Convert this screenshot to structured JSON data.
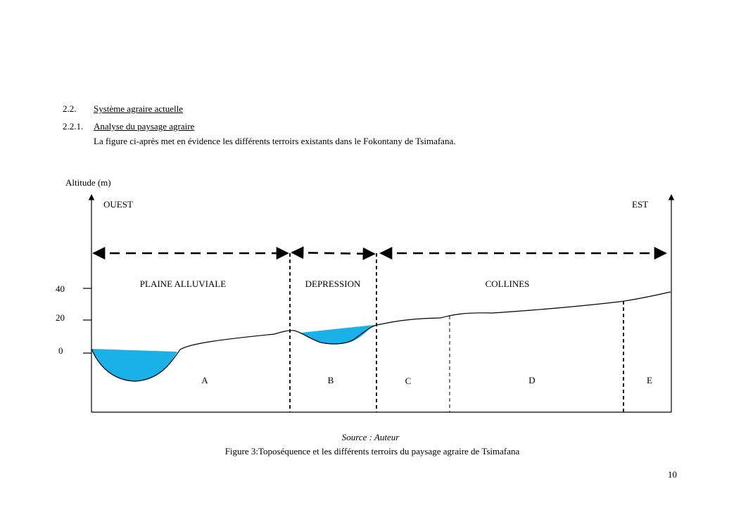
{
  "section": {
    "number": "2.2.",
    "title": "Système agraire actuelle"
  },
  "subsection": {
    "number": "2.2.1.",
    "title": "Analyse du paysage agraire"
  },
  "intro": "La figure ci-après met en évidence les différents terroirs existants dans le Fokontany de Tsimafana.",
  "figure": {
    "y_axis_label": "Altitude (m)",
    "y_ticks": [
      "40",
      "20",
      "0"
    ],
    "direction_west": "OUEST",
    "direction_east": "EST",
    "units": [
      "PLAINE ALLUVIALE",
      "DEPRESSION",
      "COLLINES"
    ],
    "zones": [
      "A",
      "B",
      "C",
      "D",
      "E"
    ],
    "water_color": "#1ab0e8"
  },
  "source": "Source : Auteur",
  "caption": "Figure 3:Toposéquence et les différents terroirs du paysage agraire de Tsimafana",
  "page_number": "10"
}
